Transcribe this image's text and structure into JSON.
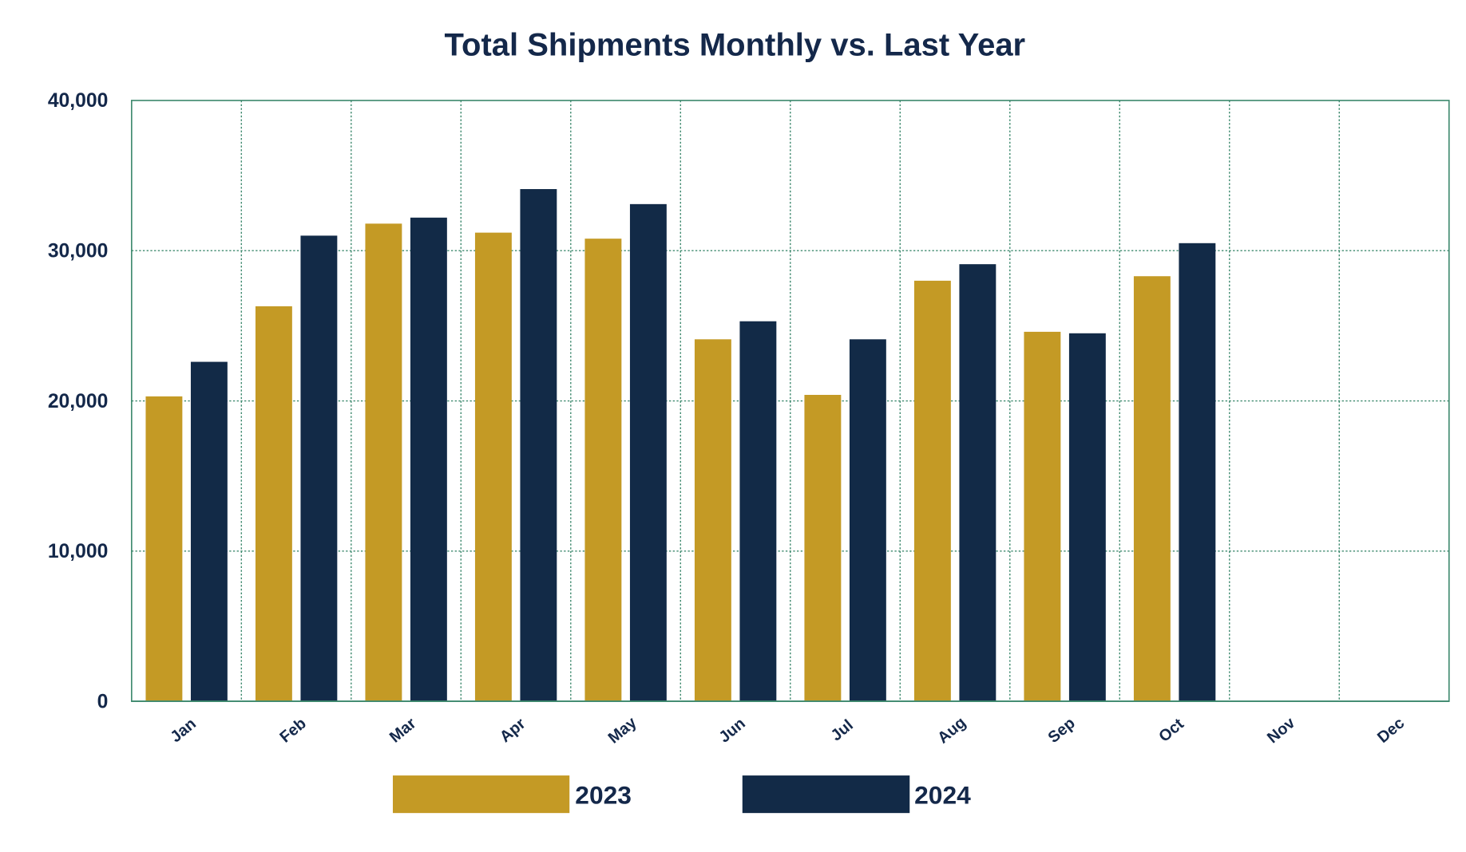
{
  "chart_data": {
    "type": "bar",
    "title": "Total Shipments Monthly vs. Last Year",
    "xlabel": "",
    "ylabel": "",
    "categories": [
      "Jan",
      "Feb",
      "Mar",
      "Apr",
      "May",
      "Jun",
      "Jul",
      "Aug",
      "Sep",
      "Oct",
      "Nov",
      "Dec"
    ],
    "ylim": [
      0,
      40000
    ],
    "yticks": [
      0,
      10000,
      20000,
      30000,
      40000
    ],
    "ytick_labels": [
      "0",
      "10,000",
      "20,000",
      "30,000",
      "40,000"
    ],
    "grid": true,
    "legend_position": "bottom",
    "series": [
      {
        "name": "2023",
        "color": "#C49A25",
        "values": [
          20300,
          26300,
          31800,
          31200,
          30800,
          24100,
          20400,
          28000,
          24600,
          28300,
          null,
          null
        ]
      },
      {
        "name": "2024",
        "color": "#122A47",
        "values": [
          22600,
          31000,
          32200,
          34100,
          33100,
          25300,
          24100,
          29100,
          24500,
          30500,
          null,
          null
        ]
      }
    ]
  }
}
